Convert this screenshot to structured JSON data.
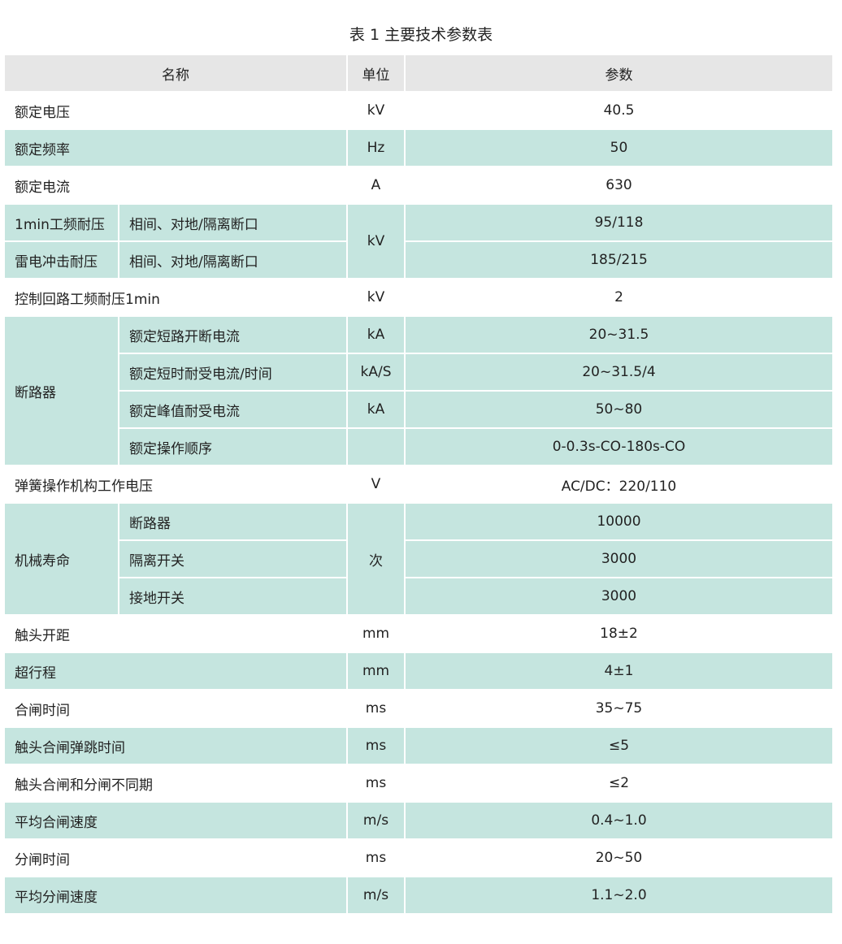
{
  "title": "表 1  主要技术参数表",
  "colors": {
    "header_bg": "#e6e6e6",
    "shaded_row": "#c5e5df",
    "plain_row": "#ffffff"
  },
  "headers": {
    "name": "名称",
    "unit": "单位",
    "value": "参数"
  },
  "groups": [
    {
      "label": "额定电压",
      "shaded": false,
      "unit": "kV",
      "items": [
        {
          "value": "40.5"
        }
      ]
    },
    {
      "label": "额定频率",
      "shaded": true,
      "unit": "Hz",
      "items": [
        {
          "value": "50"
        }
      ]
    },
    {
      "label": "额定电流",
      "shaded": false,
      "unit": "A",
      "items": [
        {
          "value": "630"
        }
      ]
    },
    {
      "label": "1min工频耐压",
      "shaded": true,
      "unit": "kV",
      "items": [
        {
          "sub": "相间、对地/隔离断口",
          "value": "95/118"
        }
      ]
    },
    {
      "label": "雷电冲击耐压",
      "shaded": true,
      "unit": null,
      "items": [
        {
          "sub": "相间、对地/隔离断口",
          "value": "185/215"
        }
      ]
    },
    {
      "label": "控制回路工频耐压1min",
      "shaded": false,
      "unit": "kV",
      "items": [
        {
          "value": "2"
        }
      ]
    },
    {
      "label": "断路器",
      "shaded": true,
      "items": [
        {
          "sub": "额定短路开断电流",
          "unit": "kA",
          "value": "20~31.5"
        },
        {
          "sub": "额定短时耐受电流/时间",
          "unit": "kA/S",
          "value": "20~31.5/4"
        },
        {
          "sub": "额定峰值耐受电流",
          "unit": "kA",
          "value": "50~80"
        },
        {
          "sub": "额定操作顺序",
          "unit": "",
          "value": "0-0.3s-CO-180s-CO"
        }
      ]
    },
    {
      "label": "弹簧操作机构工作电压",
      "shaded": false,
      "unit": "V",
      "items": [
        {
          "value": "AC/DC：220/110"
        }
      ]
    },
    {
      "label": "机械寿命",
      "shaded": true,
      "unit": "次",
      "items": [
        {
          "sub": "断路器",
          "value": "10000"
        },
        {
          "sub": "隔离开关",
          "value": "3000"
        },
        {
          "sub": "接地开关",
          "value": "3000"
        }
      ]
    },
    {
      "label": "触头开距",
      "shaded": false,
      "unit": "mm",
      "items": [
        {
          "value": "18±2"
        }
      ]
    },
    {
      "label": "超行程",
      "shaded": true,
      "unit": "mm",
      "items": [
        {
          "value": "4±1"
        }
      ]
    },
    {
      "label": "合闸时间",
      "shaded": false,
      "unit": "ms",
      "items": [
        {
          "value": "35~75"
        }
      ]
    },
    {
      "label": "触头合闸弹跳时间",
      "shaded": true,
      "unit": "ms",
      "items": [
        {
          "value": "≤5"
        }
      ]
    },
    {
      "label": "触头合闸和分闸不同期",
      "shaded": false,
      "unit": "ms",
      "items": [
        {
          "value": "≤2"
        }
      ]
    },
    {
      "label": "平均合闸速度",
      "shaded": true,
      "unit": "m/s",
      "items": [
        {
          "value": "0.4~1.0"
        }
      ]
    },
    {
      "label": "分闸时间",
      "shaded": false,
      "unit": "ms",
      "items": [
        {
          "value": "20~50"
        }
      ]
    },
    {
      "label": "平均分闸速度",
      "shaded": true,
      "unit": "m/s",
      "items": [
        {
          "value": "1.1~2.0"
        }
      ]
    }
  ]
}
